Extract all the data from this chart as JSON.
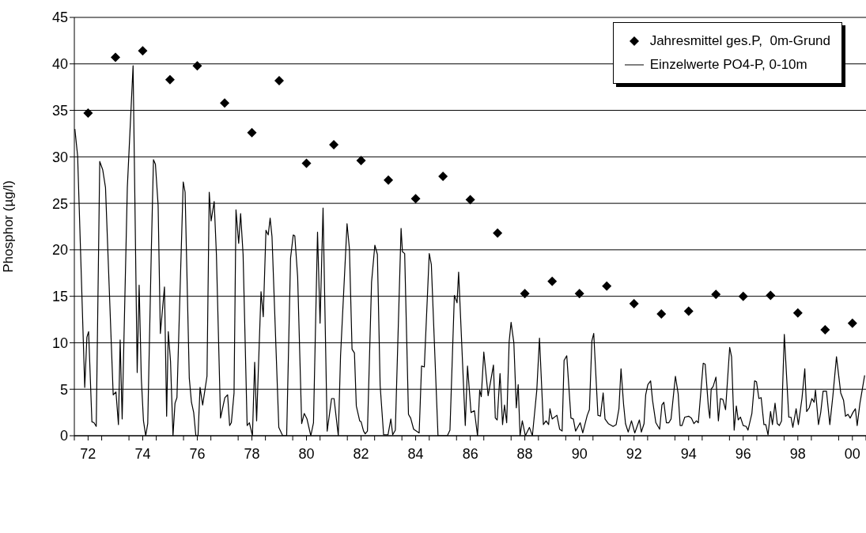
{
  "chart_data": {
    "type": "line",
    "ylabel": "Phosphor (µg/l)",
    "xlim": [
      "1971-07-01",
      "2000-07-01"
    ],
    "xticks": [
      {
        "value": "1971-07-01",
        "label": null
      },
      {
        "value": "1972",
        "label": "72"
      },
      {
        "value": "1972-07-01",
        "label": null
      },
      {
        "value": "1973-07-01",
        "label": null
      },
      {
        "value": "1974",
        "label": "74"
      },
      {
        "value": "1974-07-01",
        "label": null
      },
      {
        "value": "1975-07-01",
        "label": null
      },
      {
        "value": "1976",
        "label": "76"
      },
      {
        "value": "1976-07-01",
        "label": null
      },
      {
        "value": "1977-07-01",
        "label": null
      },
      {
        "value": "1978",
        "label": "78"
      },
      {
        "value": "1978-07-01",
        "label": null
      },
      {
        "value": "1979-07-01",
        "label": null
      },
      {
        "value": "1980",
        "label": "80"
      },
      {
        "value": "1980-07-01",
        "label": null
      },
      {
        "value": "1981-07-01",
        "label": null
      },
      {
        "value": "1982",
        "label": "82"
      },
      {
        "value": "1982-07-01",
        "label": null
      },
      {
        "value": "1983-07-01",
        "label": null
      },
      {
        "value": "1984",
        "label": "84"
      },
      {
        "value": "1984-07-01",
        "label": null
      },
      {
        "value": "1985-07-01",
        "label": null
      },
      {
        "value": "1986",
        "label": "86"
      },
      {
        "value": "1986-07-01",
        "label": null
      },
      {
        "value": "1987-07-01",
        "label": null
      },
      {
        "value": "1988",
        "label": "88"
      },
      {
        "value": "1988-07-01",
        "label": null
      },
      {
        "value": "1989-07-01",
        "label": null
      },
      {
        "value": "1990",
        "label": "90"
      },
      {
        "value": "1990-07-01",
        "label": null
      },
      {
        "value": "1991-07-01",
        "label": null
      },
      {
        "value": "1992",
        "label": "92"
      },
      {
        "value": "1992-07-01",
        "label": null
      },
      {
        "value": "1993-07-01",
        "label": null
      },
      {
        "value": "1994",
        "label": "94"
      },
      {
        "value": "1994-07-01",
        "label": null
      },
      {
        "value": "1995-07-01",
        "label": null
      },
      {
        "value": "1996",
        "label": "96"
      },
      {
        "value": "1996-07-01",
        "label": null
      },
      {
        "value": "1997-07-01",
        "label": null
      },
      {
        "value": "1998",
        "label": "98"
      },
      {
        "value": "1998-07-01",
        "label": null
      },
      {
        "value": "1999-07-01",
        "label": null
      },
      {
        "value": "2000",
        "label": "00"
      },
      {
        "value": "2000-07-01",
        "label": null
      }
    ],
    "ylim": [
      0,
      45
    ],
    "yticks": [
      0,
      5,
      10,
      15,
      20,
      25,
      30,
      35,
      40,
      45
    ],
    "grid": "y",
    "legend": "top right",
    "series": [
      {
        "name": "Jahresmittel ges.P,  0m-Grund",
        "type": "scatter",
        "marker": "diamond",
        "color": "#000000",
        "x": [
          "1972",
          "1973",
          "1974",
          "1975",
          "1976",
          "1977",
          "1978",
          "1979",
          "1980",
          "1981",
          "1982",
          "1983",
          "1984",
          "1985",
          "1986",
          "1987",
          "1988",
          "1989",
          "1990",
          "1991",
          "1992",
          "1993",
          "1994",
          "1995",
          "1996",
          "1997",
          "1998",
          "1999",
          "2000"
        ],
        "values": [
          34.7,
          40.7,
          41.4,
          38.3,
          39.8,
          35.8,
          32.6,
          38.2,
          29.3,
          31.3,
          29.6,
          27.5,
          25.5,
          27.9,
          25.4,
          21.8,
          15.3,
          16.6,
          15.3,
          16.1,
          14.2,
          13.1,
          13.4,
          15.2,
          15.0,
          15.1,
          13.2,
          11.4,
          12.1
        ]
      },
      {
        "name": "Einzelwerte PO4-P, 0-10m",
        "marker": "none",
        "line_style": "solid",
        "color": "#000000",
        "x": [
          "1971-07-08",
          "1971-08-14",
          "1971-11-17",
          "1971-12-16",
          "1972-01-08",
          "1972-02-21",
          "1972-03-20",
          "1972-04-19",
          "1972-06-05",
          "1972-07-15",
          "1972-08-21",
          "1972-12-02",
          "1973-01-08",
          "1973-02-10",
          "1973-03-05",
          "1973-04-01",
          "1973-06-09",
          "1973-08-25",
          "1973-10-19",
          "1973-11-14",
          "1973-12-13",
          "1974-01-11",
          "1974-02-10",
          "1974-03-09",
          "1974-04-26",
          "1974-05-25",
          "1974-06-20",
          "1974-07-26",
          "1974-08-25",
          "1974-10-19",
          "1974-11-17",
          "1974-12-09",
          "1975-01-08",
          "1975-02-10",
          "1975-03-09",
          "1975-04-04",
          "1975-06-27",
          "1975-07-22",
          "1975-09-16",
          "1975-10-15",
          "1975-11-14",
          "1975-12-13",
          "1976-01-11",
          "1976-02-07",
          "1976-03-13",
          "1976-05-10",
          "1976-06-09",
          "1976-07-04",
          "1976-08-14",
          "1976-09-13",
          "1976-11-07",
          "1977-01-04",
          "1977-02-10",
          "1977-03-09",
          "1977-04-01",
          "1977-05-07",
          "1977-06-02",
          "1977-07-08",
          "1977-08-03",
          "1977-09-05",
          "1977-10-29",
          "1977-11-28",
          "1978-01-08",
          "1978-02-07",
          "1978-03-05",
          "1978-05-03",
          "1978-06-02",
          "1978-07-08",
          "1978-08-07",
          "1978-09-02",
          "1978-09-27",
          "1978-12-27",
          "1979-02-17",
          "1979-04-11",
          "1979-06-02",
          "1979-07-08",
          "1979-07-29",
          "1979-09-05",
          "1979-10-29",
          "1979-12-02",
          "1980-01-08",
          "1980-02-28",
          "1980-04-04",
          "1980-05-28",
          "1980-07-01",
          "1980-08-10",
          "1980-10-04",
          "1980-12-02",
          "1981-01-04",
          "1981-03-02",
          "1981-04-01",
          "1981-06-27",
          "1981-07-29",
          "1981-09-02",
          "1981-10-04",
          "1981-10-29",
          "1981-12-13",
          "1982-01-01",
          "1982-02-03",
          "1982-02-25",
          "1982-03-27",
          "1982-05-21",
          "1982-07-04",
          "1982-08-07",
          "1982-09-13",
          "1982-10-29",
          "1982-12-27",
          "1983-02-03",
          "1983-02-28",
          "1983-04-04",
          "1983-06-20",
          "1983-07-08",
          "1983-08-07",
          "1983-09-27",
          "1983-10-26",
          "1983-12-05",
          "1984-02-17",
          "1984-03-20",
          "1984-04-26",
          "1984-07-01",
          "1984-07-29",
          "1984-10-26",
          "1985-02-28",
          "1985-04-04",
          "1985-06-02",
          "1985-07-08",
          "1985-07-29",
          "1985-10-26",
          "1985-11-25",
          "1986-01-11",
          "1986-02-25",
          "1986-04-08",
          "1986-05-07",
          "1986-05-28",
          "1986-07-01",
          "1986-08-28",
          "1986-11-07",
          "1986-12-02",
          "1986-12-27",
          "1987-02-03",
          "1987-03-09",
          "1987-04-04",
          "1987-05-03",
          "1987-06-05",
          "1987-07-01",
          "1987-08-07",
          "1987-09-09",
          "1987-10-04",
          "1987-10-29",
          "1987-11-28",
          "1988-01-08",
          "1988-03-02",
          "1988-04-11",
          "1988-06-09",
          "1988-07-15",
          "1988-09-05",
          "1988-10-11",
          "1988-11-14",
          "1988-12-02",
          "1989-01-01",
          "1989-03-05",
          "1989-04-11",
          "1989-05-14",
          "1989-06-09",
          "1989-07-15",
          "1989-08-21",
          "1989-09-09",
          "1989-10-11",
          "1989-11-10",
          "1990-01-11",
          "1990-02-14",
          "1990-04-15",
          "1990-05-14",
          "1990-06-16",
          "1990-07-11",
          "1990-09-05",
          "1990-10-08",
          "1990-11-14",
          "1990-12-09",
          "1991-01-22",
          "1991-03-27",
          "1991-05-07",
          "1991-06-13",
          "1991-07-11",
          "1991-08-14",
          "1991-09-09",
          "1991-10-15",
          "1991-11-28",
          "1992-01-11",
          "1992-03-13",
          "1992-04-08",
          "1992-05-14",
          "1992-06-05",
          "1992-07-04",
          "1992-08-10",
          "1992-09-05",
          "1992-10-19",
          "1992-12-09",
          "1993-01-08",
          "1993-02-03",
          "1993-03-09",
          "1993-04-11",
          "1993-05-10",
          "1993-07-08",
          "1993-08-14",
          "1993-09-09",
          "1993-10-04",
          "1993-11-10",
          "1994-01-01",
          "1994-02-07",
          "1994-03-13",
          "1994-04-15",
          "1994-05-10",
          "1994-07-15",
          "1994-08-10",
          "1994-09-23",
          "1994-10-11",
          "1994-10-29",
          "1994-11-25",
          "1995-01-01",
          "1995-02-03",
          "1995-03-02",
          "1995-04-04",
          "1995-05-10",
          "1995-07-04",
          "1995-07-29",
          "1995-09-02",
          "1995-10-01",
          "1995-10-26",
          "1995-11-25",
          "1996-01-01",
          "1996-02-10",
          "1996-03-05",
          "1996-04-26",
          "1996-06-02",
          "1996-06-27",
          "1996-07-29",
          "1996-08-28",
          "1996-10-04",
          "1996-10-29",
          "1996-11-28",
          "1997-01-01",
          "1997-01-26",
          "1997-03-02",
          "1997-04-01",
          "1997-04-29",
          "1997-05-28",
          "1997-07-04",
          "1997-09-02",
          "1997-10-01",
          "1997-10-26",
          "1997-12-09",
          "1998-01-08",
          "1998-02-25",
          "1998-04-04",
          "1998-04-29",
          "1998-06-02",
          "1998-07-08",
          "1998-08-07",
          "1998-08-25",
          "1998-10-04",
          "1998-11-03",
          "1998-12-05",
          "1999-01-19",
          "1999-03-05",
          "1999-04-15",
          "1999-06-02",
          "1999-07-29",
          "1999-09-05",
          "1999-10-01",
          "1999-11-03",
          "1999-12-02",
          "2000-01-08",
          "2000-02-10",
          "2000-03-05",
          "2000-04-11",
          "2000-06-13"
        ],
        "values": [
          33.0,
          30.1,
          5.2,
          10.6,
          11.2,
          1.5,
          1.4,
          1.0,
          29.5,
          28.6,
          26.7,
          4.4,
          4.7,
          1.2,
          10.3,
          1.8,
          26.7,
          39.8,
          6.8,
          16.2,
          6.2,
          1.6,
          0,
          1.3,
          19.9,
          29.7,
          29.2,
          24.8,
          11.0,
          16.0,
          2.1,
          11.2,
          8.0,
          0,
          3.5,
          4.1,
          27.3,
          26.2,
          6.2,
          3.6,
          2.5,
          0,
          0,
          5.2,
          3.3,
          6.4,
          26.2,
          23.1,
          25.2,
          19.5,
          1.9,
          4.1,
          4.4,
          1.1,
          1.4,
          4.6,
          24.3,
          20.7,
          23.9,
          19.5,
          1.1,
          1.4,
          0,
          7.9,
          1.6,
          15.5,
          12.8,
          22.1,
          21.6,
          23.4,
          21.4,
          0.9,
          0,
          0,
          19.1,
          21.6,
          21.5,
          17.1,
          1.3,
          2.4,
          1.8,
          0,
          1.4,
          21.9,
          12.1,
          24.5,
          0.5,
          4.0,
          4.0,
          0,
          8.6,
          22.8,
          20.1,
          9.3,
          8.9,
          3.2,
          1.6,
          1.5,
          0.5,
          0.2,
          0.5,
          16.5,
          20.5,
          19.5,
          5.4,
          0.1,
          0.1,
          1.8,
          0.1,
          0.6,
          22.3,
          19.8,
          19.6,
          2.3,
          1.9,
          0.7,
          0.3,
          7.5,
          7.4,
          19.6,
          18.4,
          0,
          0,
          0.6,
          15.1,
          14.3,
          17.6,
          1.1,
          7.5,
          2.5,
          2.7,
          0,
          4.9,
          4.2,
          9.0,
          4.3,
          7.6,
          1.9,
          1.7,
          6.7,
          1.2,
          3.3,
          1.4,
          10.1,
          12.2,
          10.0,
          3.0,
          5.5,
          0,
          1.6,
          0,
          0.9,
          0,
          4.9,
          10.5,
          1.2,
          1.6,
          1.2,
          2.9,
          1.8,
          2.2,
          0.7,
          0.5,
          8.1,
          8.6,
          4.2,
          1.9,
          1.8,
          0.5,
          1.4,
          0.3,
          2.2,
          2.8,
          10.2,
          11.0,
          2.2,
          2.1,
          4.6,
          1.8,
          1.3,
          1.0,
          1.2,
          2.9,
          7.2,
          3.4,
          1.3,
          0.4,
          1.6,
          0.3,
          1.7,
          0.4,
          1.3,
          4.4,
          5.5,
          5.9,
          3.8,
          1.4,
          0.7,
          3.3,
          3.6,
          1.4,
          1.4,
          1.8,
          6.4,
          4.5,
          1.1,
          1.1,
          2.0,
          2.1,
          1.9,
          1.3,
          1.6,
          1.4,
          7.8,
          7.7,
          3.0,
          1.9,
          5.0,
          5.3,
          6.3,
          1.6,
          4.0,
          3.9,
          2.8,
          9.5,
          8.5,
          0.6,
          3.2,
          1.7,
          2.0,
          1.1,
          1.0,
          0.6,
          2.4,
          5.9,
          5.8,
          4.0,
          4.1,
          1.2,
          1.2,
          0.1,
          2.6,
          1.2,
          3.5,
          1.3,
          1.1,
          1.6,
          10.9,
          2.0,
          2.0,
          0.9,
          2.9,
          1.2,
          4.0,
          7.2,
          2.6,
          3.0,
          4.0,
          3.6,
          4.9,
          1.2,
          2.5,
          4.8,
          4.8,
          1.2,
          4.3,
          8.5,
          4.6,
          3.8,
          2.1,
          2.3,
          1.9,
          2.5,
          2.9,
          1.1,
          3.5,
          6.5
        ]
      }
    ]
  }
}
